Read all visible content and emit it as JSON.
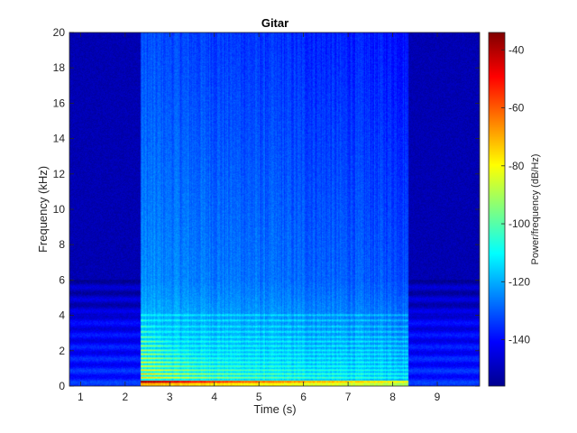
{
  "chart_data": {
    "type": "heatmap",
    "title": "Gitar",
    "xlabel": "Time (s)",
    "ylabel": "Frequency (kHz)",
    "colorbar_label": "Power/frequency (dB/Hz)",
    "xlim": [
      0.75,
      9.95
    ],
    "ylim": [
      0,
      20
    ],
    "clim": [
      -156,
      -34
    ],
    "x_ticks": [
      1,
      2,
      3,
      4,
      5,
      6,
      7,
      8,
      9
    ],
    "y_ticks": [
      0,
      2,
      4,
      6,
      8,
      10,
      12,
      14,
      16,
      18,
      20
    ],
    "colorbar_ticks": [
      -40,
      -60,
      -80,
      -100,
      -120,
      -140
    ],
    "colormap": "jet",
    "grid": false,
    "note_onset_s": 2.35,
    "note_release_s": 8.35
  }
}
